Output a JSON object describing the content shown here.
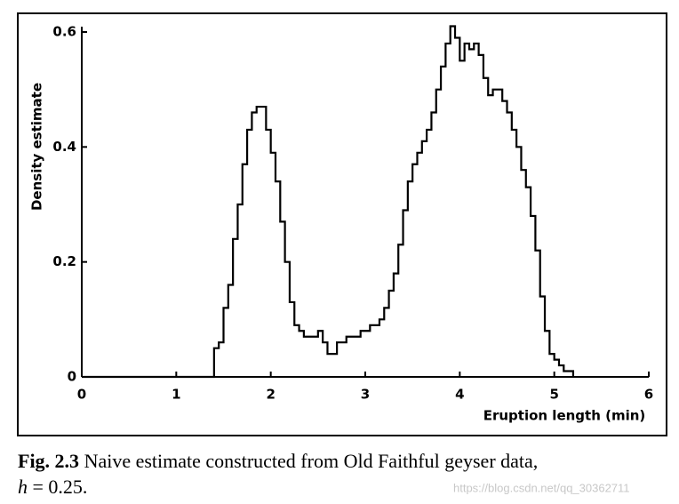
{
  "chart_data": {
    "type": "step",
    "xlabel": "Eruption length (min)",
    "ylabel": "Density estimate",
    "x": [
      0,
      1.4,
      1.45,
      1.5,
      1.55,
      1.6,
      1.65,
      1.7,
      1.75,
      1.8,
      1.85,
      1.9,
      1.95,
      2.0,
      2.05,
      2.1,
      2.15,
      2.2,
      2.25,
      2.3,
      2.35,
      2.4,
      2.45,
      2.5,
      2.55,
      2.6,
      2.65,
      2.7,
      2.75,
      2.8,
      2.85,
      2.9,
      2.95,
      3.0,
      3.05,
      3.1,
      3.15,
      3.2,
      3.25,
      3.3,
      3.35,
      3.4,
      3.45,
      3.5,
      3.55,
      3.6,
      3.65,
      3.7,
      3.75,
      3.8,
      3.85,
      3.9,
      3.95,
      4.0,
      4.05,
      4.1,
      4.15,
      4.2,
      4.25,
      4.3,
      4.35,
      4.4,
      4.45,
      4.5,
      4.55,
      4.6,
      4.65,
      4.7,
      4.75,
      4.8,
      4.85,
      4.9,
      4.95,
      5.0,
      5.05,
      5.1,
      5.15,
      5.2
    ],
    "values": [
      0,
      0.05,
      0.06,
      0.12,
      0.16,
      0.24,
      0.3,
      0.37,
      0.43,
      0.46,
      0.47,
      0.47,
      0.43,
      0.39,
      0.34,
      0.27,
      0.2,
      0.13,
      0.09,
      0.08,
      0.07,
      0.07,
      0.07,
      0.08,
      0.06,
      0.04,
      0.04,
      0.06,
      0.06,
      0.07,
      0.07,
      0.07,
      0.08,
      0.08,
      0.09,
      0.09,
      0.1,
      0.12,
      0.15,
      0.18,
      0.23,
      0.29,
      0.34,
      0.37,
      0.39,
      0.41,
      0.43,
      0.46,
      0.5,
      0.54,
      0.58,
      0.61,
      0.59,
      0.55,
      0.58,
      0.57,
      0.58,
      0.56,
      0.52,
      0.49,
      0.5,
      0.5,
      0.48,
      0.46,
      0.43,
      0.4,
      0.36,
      0.33,
      0.28,
      0.22,
      0.14,
      0.08,
      0.04,
      0.03,
      0.02,
      0.01,
      0.01,
      0
    ],
    "color": "#000000",
    "xlim": [
      0,
      6
    ],
    "xticks": [
      0,
      1,
      2,
      3,
      4,
      5,
      6
    ],
    "ylim": [
      0,
      0.6
    ],
    "yticks": [
      0,
      0.2,
      0.4,
      0.6
    ]
  },
  "caption": {
    "label": "Fig. 2.3",
    "text": "Naive estimate constructed from Old Faithful geyser data,",
    "variable": "h",
    "rest": "= 0.25."
  },
  "watermark": "https://blog.csdn.net/qq_30362711"
}
